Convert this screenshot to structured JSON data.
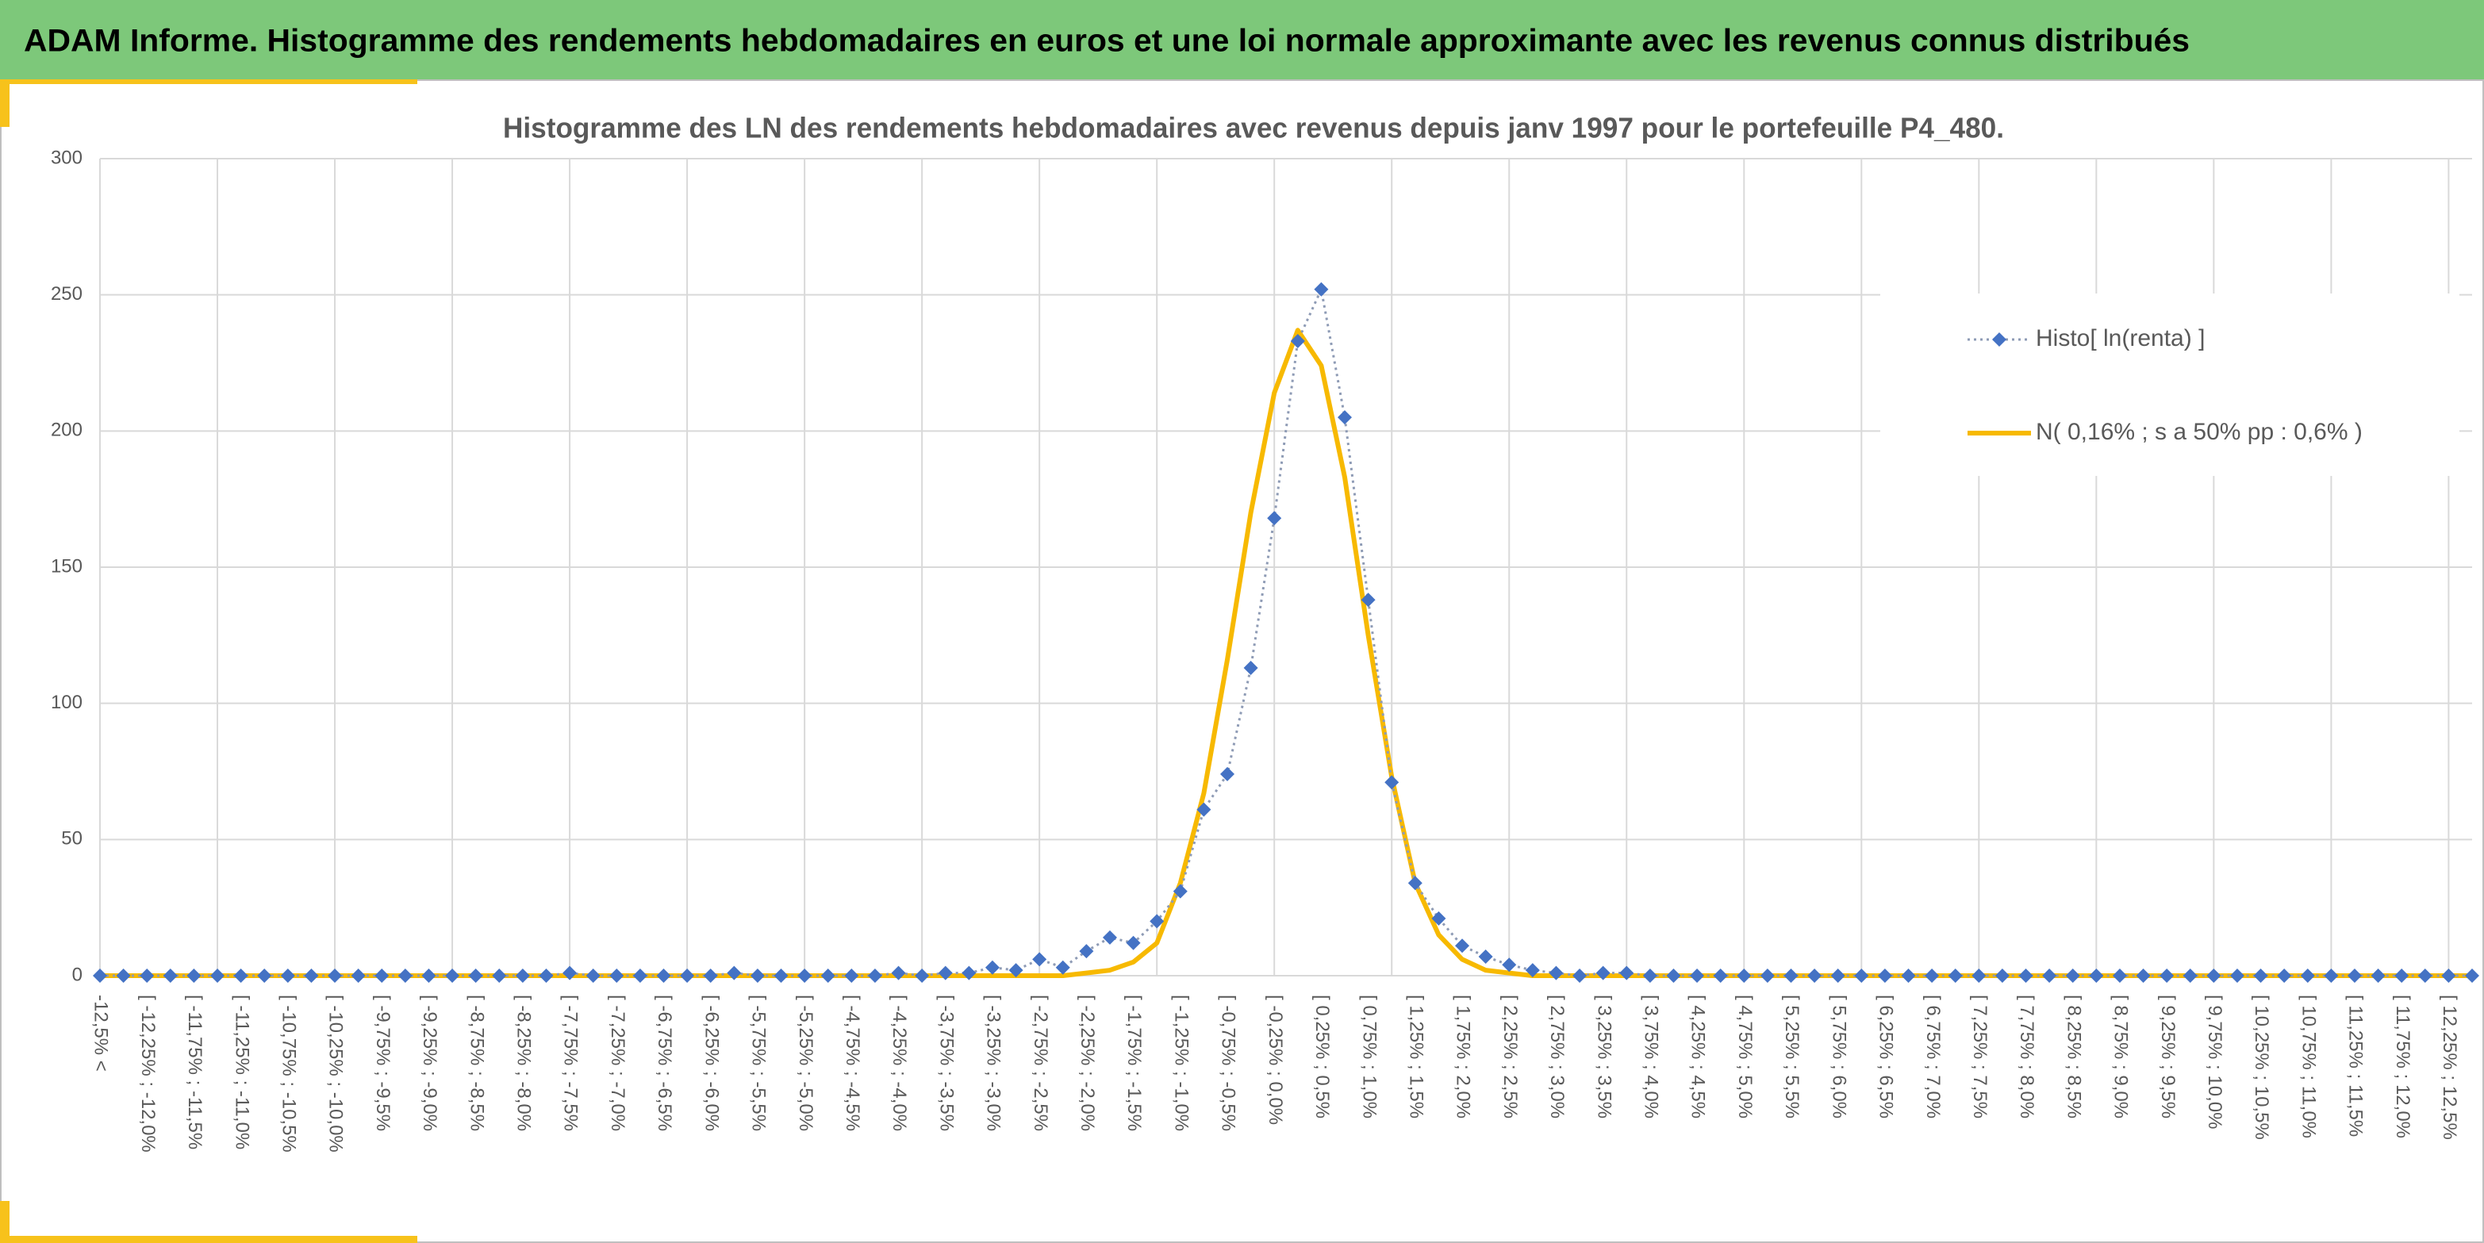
{
  "header": {
    "title": "ADAM Informe. Histogramme des rendements hebdomadaires en euros et une loi normale approximante avec les revenus connus distribués"
  },
  "chart_data": {
    "type": "line",
    "title": "Histogramme des LN des rendements hebdomadaires avec revenus depuis janv 1997 pour le portefeuille P4_480.",
    "categories": [
      "-12,5% <",
      null,
      "[ -12,25% ; -12,0%",
      null,
      "[ -11,75% ; -11,5%",
      null,
      "[ -11,25% ; -11,0%",
      null,
      "[ -10,75% ; -10,5%",
      null,
      "[ -10,25% ; -10,0%",
      null,
      "[ -9,75% ; -9,5%",
      null,
      "[ -9,25% ; -9,0%",
      null,
      "[ -8,75% ; -8,5%",
      null,
      "[ -8,25% ; -8,0%",
      null,
      "[ -7,75% ; -7,5%",
      null,
      "[ -7,25% ; -7,0%",
      null,
      "[ -6,75% ; -6,5%",
      null,
      "[ -6,25% ; -6,0%",
      null,
      "[ -5,75% ; -5,5%",
      null,
      "[ -5,25% ; -5,0%",
      null,
      "[ -4,75% ; -4,5%",
      null,
      "[ -4,25% ; -4,0%",
      null,
      "[ -3,75% ; -3,5%",
      null,
      "[ -3,25% ; -3,0%",
      null,
      "[ -2,75% ; -2,5%",
      null,
      "[ -2,25% ; -2,0%",
      null,
      "[ -1,75% ; -1,5%",
      null,
      "[ -1,25% ; -1,0%",
      null,
      "[ -0,75% ; -0,5%",
      null,
      "[ -0,25% ; 0,0%",
      null,
      "[ 0,25% ; 0,5%",
      null,
      "[ 0,75% ; 1,0%",
      null,
      "[ 1,25% ; 1,5%",
      null,
      "[ 1,75% ; 2,0%",
      null,
      "[ 2,25% ; 2,5%",
      null,
      "[ 2,75% ; 3,0%",
      null,
      "[ 3,25% ; 3,5%",
      null,
      "[ 3,75% ; 4,0%",
      null,
      "[ 4,25% ; 4,5%",
      null,
      "[ 4,75% ; 5,0%",
      null,
      "[ 5,25% ; 5,5%",
      null,
      "[ 5,75% ; 6,0%",
      null,
      "[ 6,25% ; 6,5%",
      null,
      "[ 6,75% ; 7,0%",
      null,
      "[ 7,25% ; 7,5%",
      null,
      "[ 7,75% ; 8,0%",
      null,
      "[ 8,25% ; 8,5%",
      null,
      "[ 8,75% ; 9,0%",
      null,
      "[ 9,25% ; 9,5%",
      null,
      "[ 9,75% ; 10,0%",
      null,
      "[ 10,25% ; 10,5%",
      null,
      "[ 10,75% ; 11,0%",
      null,
      "[ 11,25% ; 11,5%",
      null,
      "[ 11,75% ; 12,0%",
      null,
      "[ 12,25% ; 12,5%",
      null
    ],
    "series": [
      {
        "name": "Histo[ ln(renta) ]",
        "color": "#4472c4",
        "line_color": "#8e9bb5",
        "line_style": "dotted",
        "marker": "diamond",
        "values": [
          0,
          0,
          0,
          0,
          0,
          0,
          0,
          0,
          0,
          0,
          0,
          0,
          0,
          0,
          0,
          0,
          0,
          0,
          0,
          0,
          1,
          0,
          0,
          0,
          0,
          0,
          0,
          1,
          0,
          0,
          0,
          0,
          0,
          0,
          1,
          0,
          1,
          1,
          3,
          2,
          6,
          3,
          9,
          14,
          12,
          20,
          31,
          61,
          74,
          113,
          168,
          233,
          252,
          205,
          138,
          71,
          34,
          21,
          11,
          7,
          4,
          2,
          1,
          0,
          1,
          1,
          0,
          0,
          0,
          0,
          0,
          0,
          0,
          0,
          0,
          0,
          0,
          0,
          0,
          0,
          0,
          0,
          0,
          0,
          0,
          0,
          0,
          0,
          0,
          0,
          0,
          0,
          0,
          0,
          0,
          0,
          0,
          0,
          0,
          0,
          0,
          0
        ]
      },
      {
        "name": "N( 0,16% ; s a 50% pp : 0,6% )",
        "color": "#f7b900",
        "line_color": "#f7b900",
        "line_style": "solid",
        "marker": "none",
        "values": [
          0,
          0,
          0,
          0,
          0,
          0,
          0,
          0,
          0,
          0,
          0,
          0,
          0,
          0,
          0,
          0,
          0,
          0,
          0,
          0,
          0,
          0,
          0,
          0,
          0,
          0,
          0,
          0,
          0,
          0,
          0,
          0,
          0,
          0,
          0,
          0,
          0,
          0,
          0,
          0,
          0,
          0,
          1,
          2,
          5,
          12,
          34,
          67,
          116,
          170,
          214,
          237,
          224,
          183,
          125,
          73,
          34,
          15,
          6,
          2,
          1,
          0,
          0,
          0,
          0,
          0,
          0,
          0,
          0,
          0,
          0,
          0,
          0,
          0,
          0,
          0,
          0,
          0,
          0,
          0,
          0,
          0,
          0,
          0,
          0,
          0,
          0,
          0,
          0,
          0,
          0,
          0,
          0,
          0,
          0,
          0,
          0,
          0,
          0,
          0,
          0,
          0
        ]
      }
    ],
    "ylim": [
      0,
      300
    ],
    "yticks": [
      0,
      50,
      100,
      150,
      200,
      250,
      300
    ],
    "grid": true,
    "legend": "upper right"
  }
}
